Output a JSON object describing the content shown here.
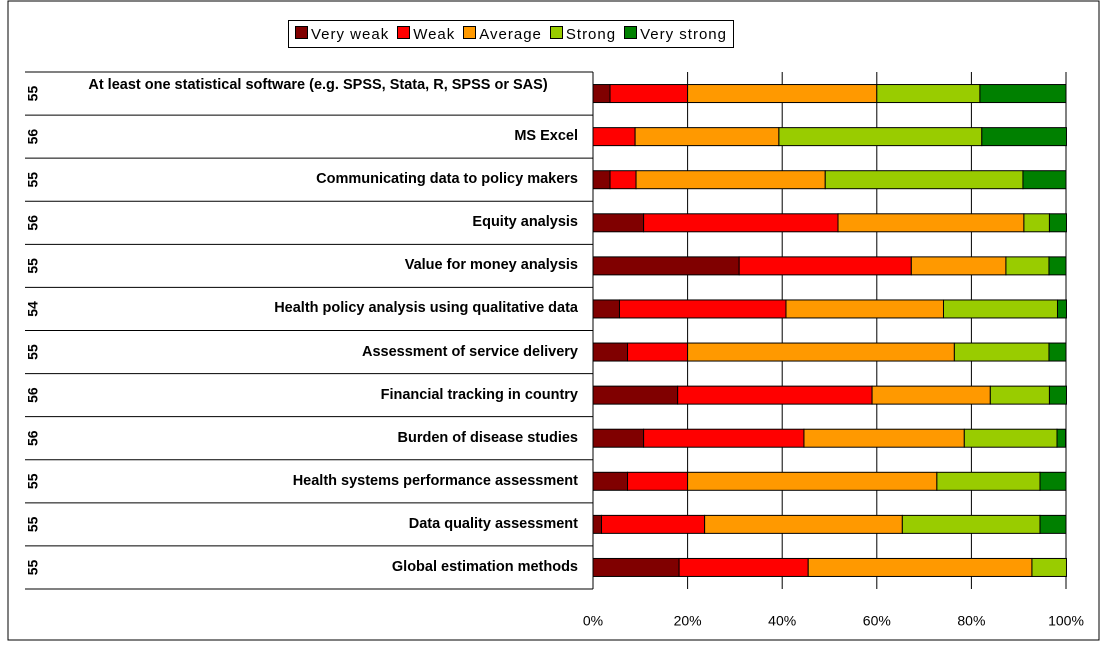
{
  "chart_data": {
    "type": "stacked-bar-horizontal",
    "categories": [
      "At least one statistical software (e.g. SPSS, Stata, R, SPSS or SAS)",
      "MS Excel",
      "Communicating data to policy makers",
      "Equity analysis",
      "Value for money analysis",
      "Health policy analysis using qualitative data",
      "Assessment of service delivery",
      "Financial tracking in country",
      "Burden of disease studies",
      "Health systems performance assessment",
      "Data quality assessment",
      "Global estimation methods"
    ],
    "n": [
      55,
      56,
      55,
      56,
      55,
      54,
      55,
      56,
      56,
      55,
      55,
      55
    ],
    "series": [
      {
        "name": "Very weak",
        "color": "#800000",
        "values": [
          3.6,
          0,
          3.6,
          10.7,
          30.9,
          5.6,
          7.3,
          17.9,
          10.7,
          7.3,
          1.8,
          18.2
        ]
      },
      {
        "name": "Weak",
        "color": "#ff0000",
        "values": [
          16.4,
          8.9,
          5.5,
          41.1,
          36.4,
          35.2,
          12.7,
          41.1,
          33.9,
          12.7,
          21.8,
          27.3
        ]
      },
      {
        "name": "Average",
        "color": "#ff9900",
        "values": [
          40,
          30.4,
          40,
          39.3,
          20,
          33.3,
          56.4,
          25,
          33.9,
          52.7,
          41.8,
          47.3
        ]
      },
      {
        "name": "Strong",
        "color": "#99cc00",
        "values": [
          21.8,
          42.9,
          41.8,
          5.4,
          9.1,
          24.1,
          20,
          12.5,
          19.6,
          21.8,
          29.1,
          7.3
        ]
      },
      {
        "name": "Very strong",
        "color": "#008000",
        "values": [
          18.2,
          17.9,
          9.1,
          3.6,
          3.6,
          1.9,
          3.6,
          3.6,
          1.8,
          5.5,
          5.5,
          0
        ]
      }
    ],
    "xlim": [
      0,
      100
    ],
    "xticks": [
      {
        "value": 0,
        "label": "0%"
      },
      {
        "value": 20,
        "label": "20%"
      },
      {
        "value": 40,
        "label": "40%"
      },
      {
        "value": 60,
        "label": "60%"
      },
      {
        "value": 80,
        "label": "80%"
      },
      {
        "value": 100,
        "label": "100%"
      }
    ],
    "grid": true
  }
}
